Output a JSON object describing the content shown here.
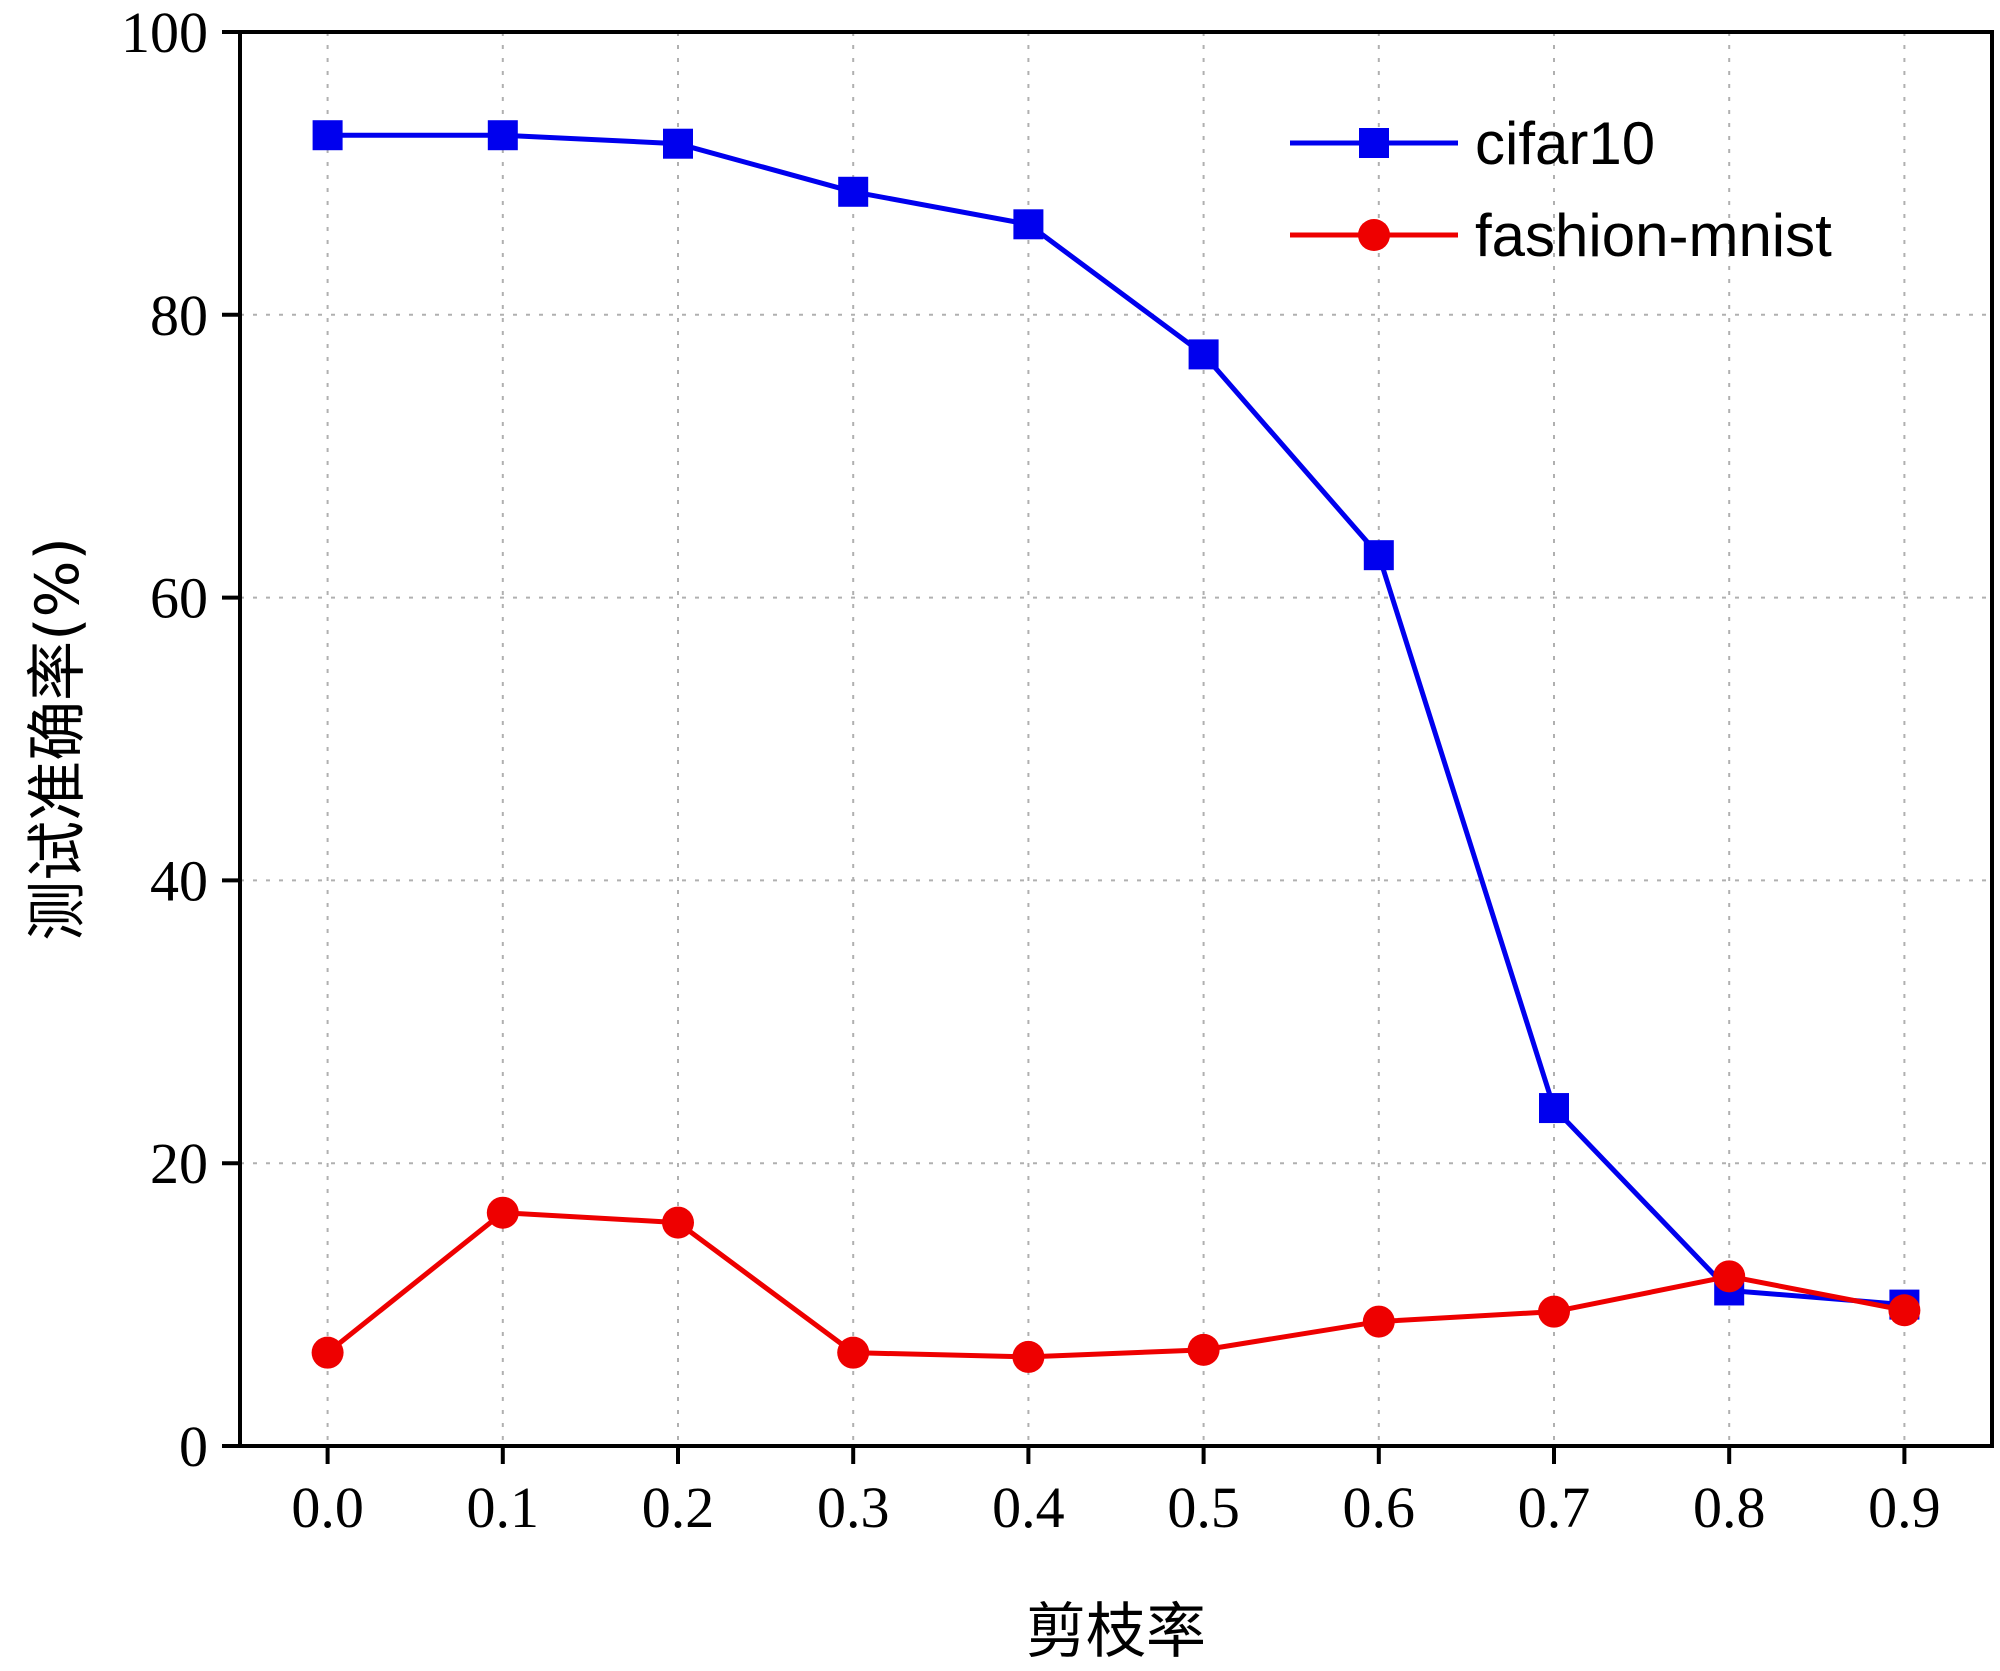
{
  "chart_data": {
    "type": "line",
    "xlabel": "剪枝率",
    "ylabel": "测试准确率(%)",
    "xlim": [
      -0.05,
      0.95
    ],
    "ylim": [
      0,
      100
    ],
    "x": [
      0.0,
      0.1,
      0.2,
      0.3,
      0.4,
      0.5,
      0.6,
      0.7,
      0.8,
      0.9
    ],
    "x_tick_labels": [
      "0.0",
      "0.1",
      "0.2",
      "0.3",
      "0.4",
      "0.5",
      "0.6",
      "0.7",
      "0.8",
      "0.9"
    ],
    "y_ticks": [
      0,
      20,
      40,
      60,
      80,
      100
    ],
    "y_tick_labels": [
      "0",
      "20",
      "40",
      "60",
      "80",
      "100"
    ],
    "grid": true,
    "legend_position": "top-right",
    "series": [
      {
        "name": "cifar10",
        "color": "#0000ee",
        "marker": "square",
        "values": [
          92.7,
          92.7,
          92.1,
          88.7,
          86.4,
          77.2,
          63.0,
          23.9,
          11.0,
          10.0
        ]
      },
      {
        "name": "fashion-mnist",
        "color": "#ee0000",
        "marker": "circle",
        "values": [
          6.6,
          16.5,
          15.8,
          6.6,
          6.3,
          6.8,
          8.8,
          9.5,
          12.0,
          9.6
        ]
      }
    ]
  }
}
